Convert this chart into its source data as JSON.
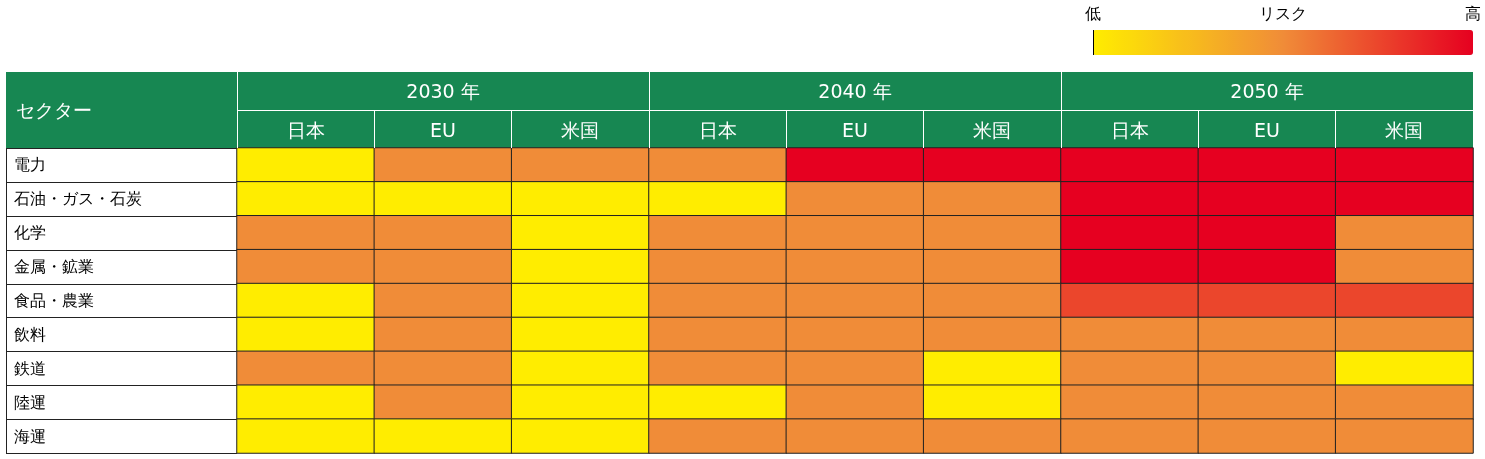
{
  "chart_data": {
    "type": "heatmap",
    "ylabel": "セクター",
    "clabel": "リスク",
    "annotations": [
      "2030 年",
      "2040 年",
      "2050 年"
    ],
    "categories": [
      "日本",
      "EU",
      "米国",
      "日本",
      "EU",
      "米国",
      "日本",
      "EU",
      "米国"
    ],
    "y_categories": [
      "電力",
      "石油・ガス・石炭",
      "化学",
      "金属・鉱業",
      "食品・農業",
      "飲料",
      "鉄道",
      "陸運",
      "海運"
    ],
    "cells": [
      [
        0,
        0.5,
        0.5,
        0.5,
        1,
        1,
        1,
        1,
        1
      ],
      [
        0,
        0,
        0,
        0,
        0.5,
        0.5,
        1,
        1,
        1
      ],
      [
        0.5,
        0.5,
        0,
        0.5,
        0.5,
        0.5,
        1,
        1,
        0.5
      ],
      [
        0.5,
        0.5,
        0,
        0.5,
        0.5,
        0.5,
        1,
        1,
        0.5
      ],
      [
        0,
        0.5,
        0,
        0.5,
        0.5,
        0.5,
        0.75,
        0.75,
        0.75
      ],
      [
        0,
        0.5,
        0,
        0.5,
        0.5,
        0.5,
        0.5,
        0.5,
        0.5
      ],
      [
        0.5,
        0.5,
        0,
        0.5,
        0.5,
        0,
        0.5,
        0.5,
        0
      ],
      [
        0,
        0.5,
        0,
        0,
        0.5,
        0,
        0.5,
        0.5,
        0.5
      ],
      [
        0,
        0,
        0,
        0.5,
        0.5,
        0.5,
        0.5,
        0.5,
        0.5
      ]
    ],
    "clim": [
      0,
      1
    ],
    "cticks": [
      {
        "value": 0,
        "label": "低"
      },
      {
        "value": 1,
        "label": "高"
      }
    ]
  }
}
